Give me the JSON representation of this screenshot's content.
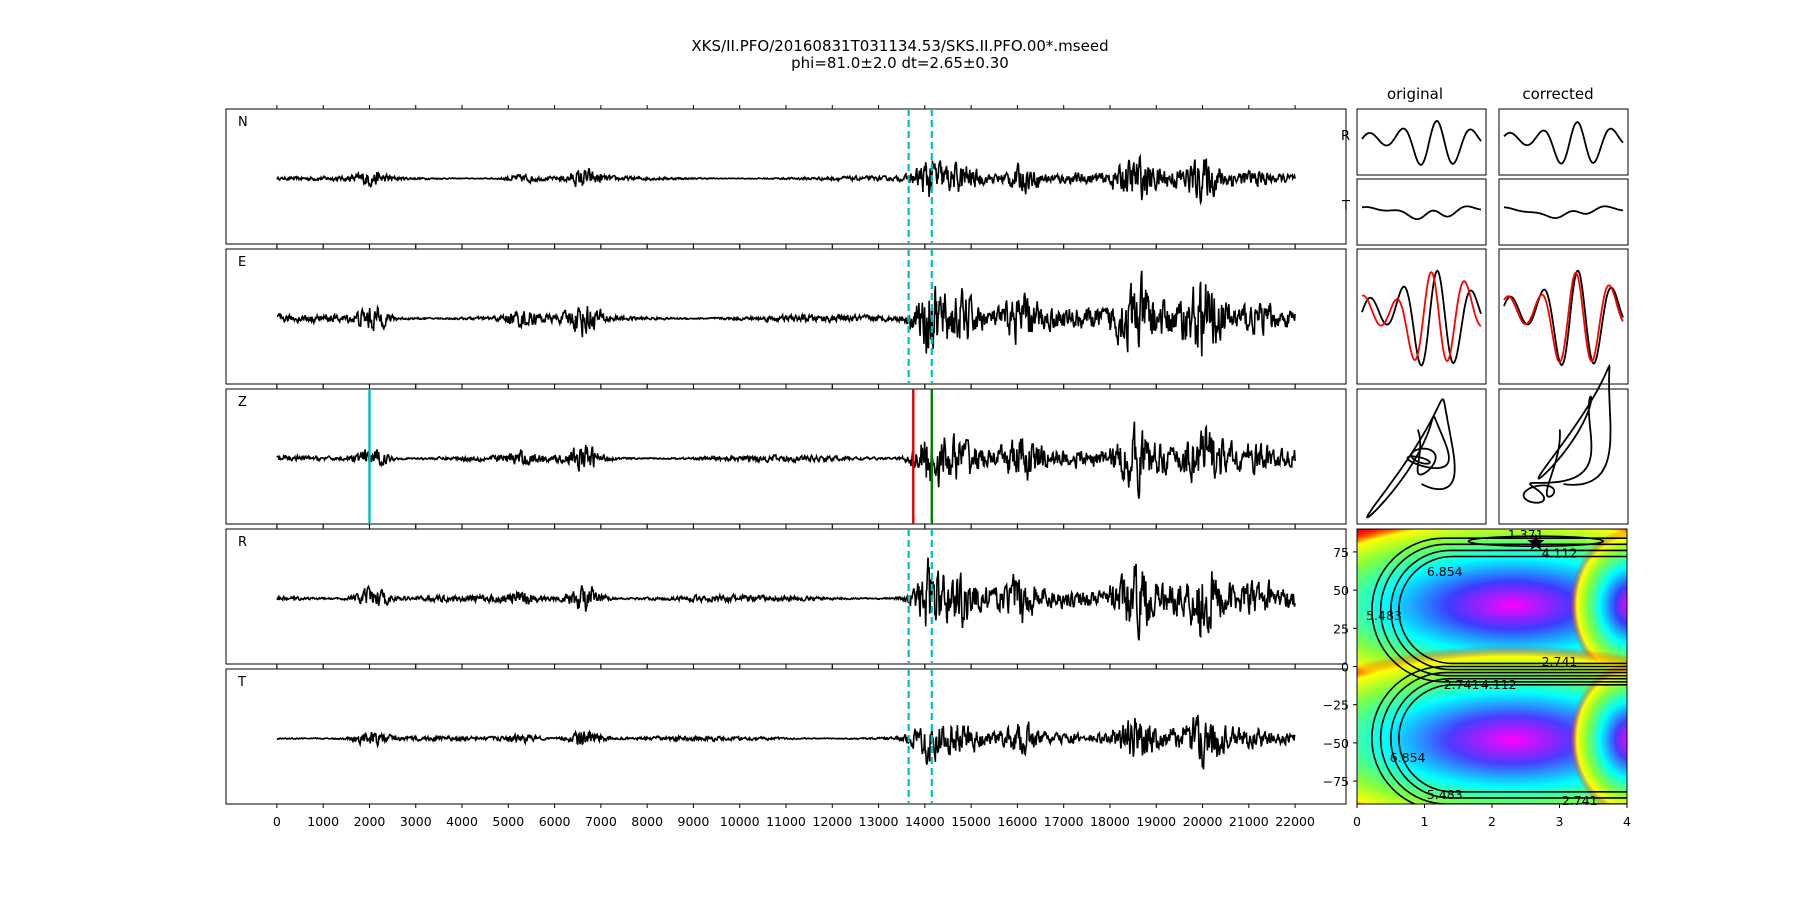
{
  "title_line1": "XKS/II.PFO/20160831T031134.53/SKS.II.PFO.00*.mseed",
  "title_line2": "phi=81.0±2.0 dt=2.65±0.30",
  "column_original": "original",
  "column_corrected": "corrected",
  "chart_data": [
    {
      "type": "line",
      "title": "",
      "description_role": "three-component seismograms N, E, Z and rotated R, T",
      "channels": [
        "N",
        "E",
        "Z",
        "R",
        "T"
      ],
      "xlim": [
        -1100,
        23100
      ],
      "xticks": [
        0,
        1000,
        2000,
        3000,
        4000,
        5000,
        6000,
        7000,
        8000,
        9000,
        10000,
        11000,
        12000,
        13000,
        14000,
        15000,
        16000,
        17000,
        18000,
        19000,
        20000,
        21000,
        22000
      ],
      "trace_x_range": [
        0,
        22000
      ],
      "window_start": 13650,
      "window_end": 14150,
      "markers_on_Z": [
        {
          "x": 2000,
          "color": "#00bfbf"
        },
        {
          "x": 13750,
          "color": "#e00000"
        },
        {
          "x": 14150,
          "color": "#008000"
        }
      ],
      "events": [
        {
          "x": 2050,
          "amp": 0.35
        },
        {
          "x": 5300,
          "amp": 0.2
        },
        {
          "x": 6650,
          "amp": 0.45
        },
        {
          "x": 14100,
          "amp": 1.0
        },
        {
          "x": 14800,
          "amp": 0.6
        },
        {
          "x": 16100,
          "amp": 0.55
        },
        {
          "x": 18600,
          "amp": 0.7
        },
        {
          "x": 20000,
          "amp": 0.8
        }
      ]
    },
    {
      "type": "line",
      "title": "",
      "description_role": "R and T windowed particle waveforms before and after correction",
      "row_labels": [
        "R",
        "T"
      ],
      "colors": [
        "#000000",
        "#ff0000"
      ]
    },
    {
      "type": "heatmap",
      "title": "",
      "xlim": [
        0,
        4
      ],
      "ylim": [
        -90,
        90
      ],
      "xticks": [
        0,
        1,
        2,
        3,
        4
      ],
      "yticks": [
        -75,
        -50,
        -25,
        0,
        25,
        50,
        75
      ],
      "best": {
        "dt": 2.65,
        "phi": 81.0
      },
      "contour_labels": [
        "1.371",
        "4.112",
        "6.854",
        "5.483",
        "2.741",
        "2.741",
        "4.112",
        "6.854",
        "5.483",
        "2.741"
      ]
    }
  ]
}
